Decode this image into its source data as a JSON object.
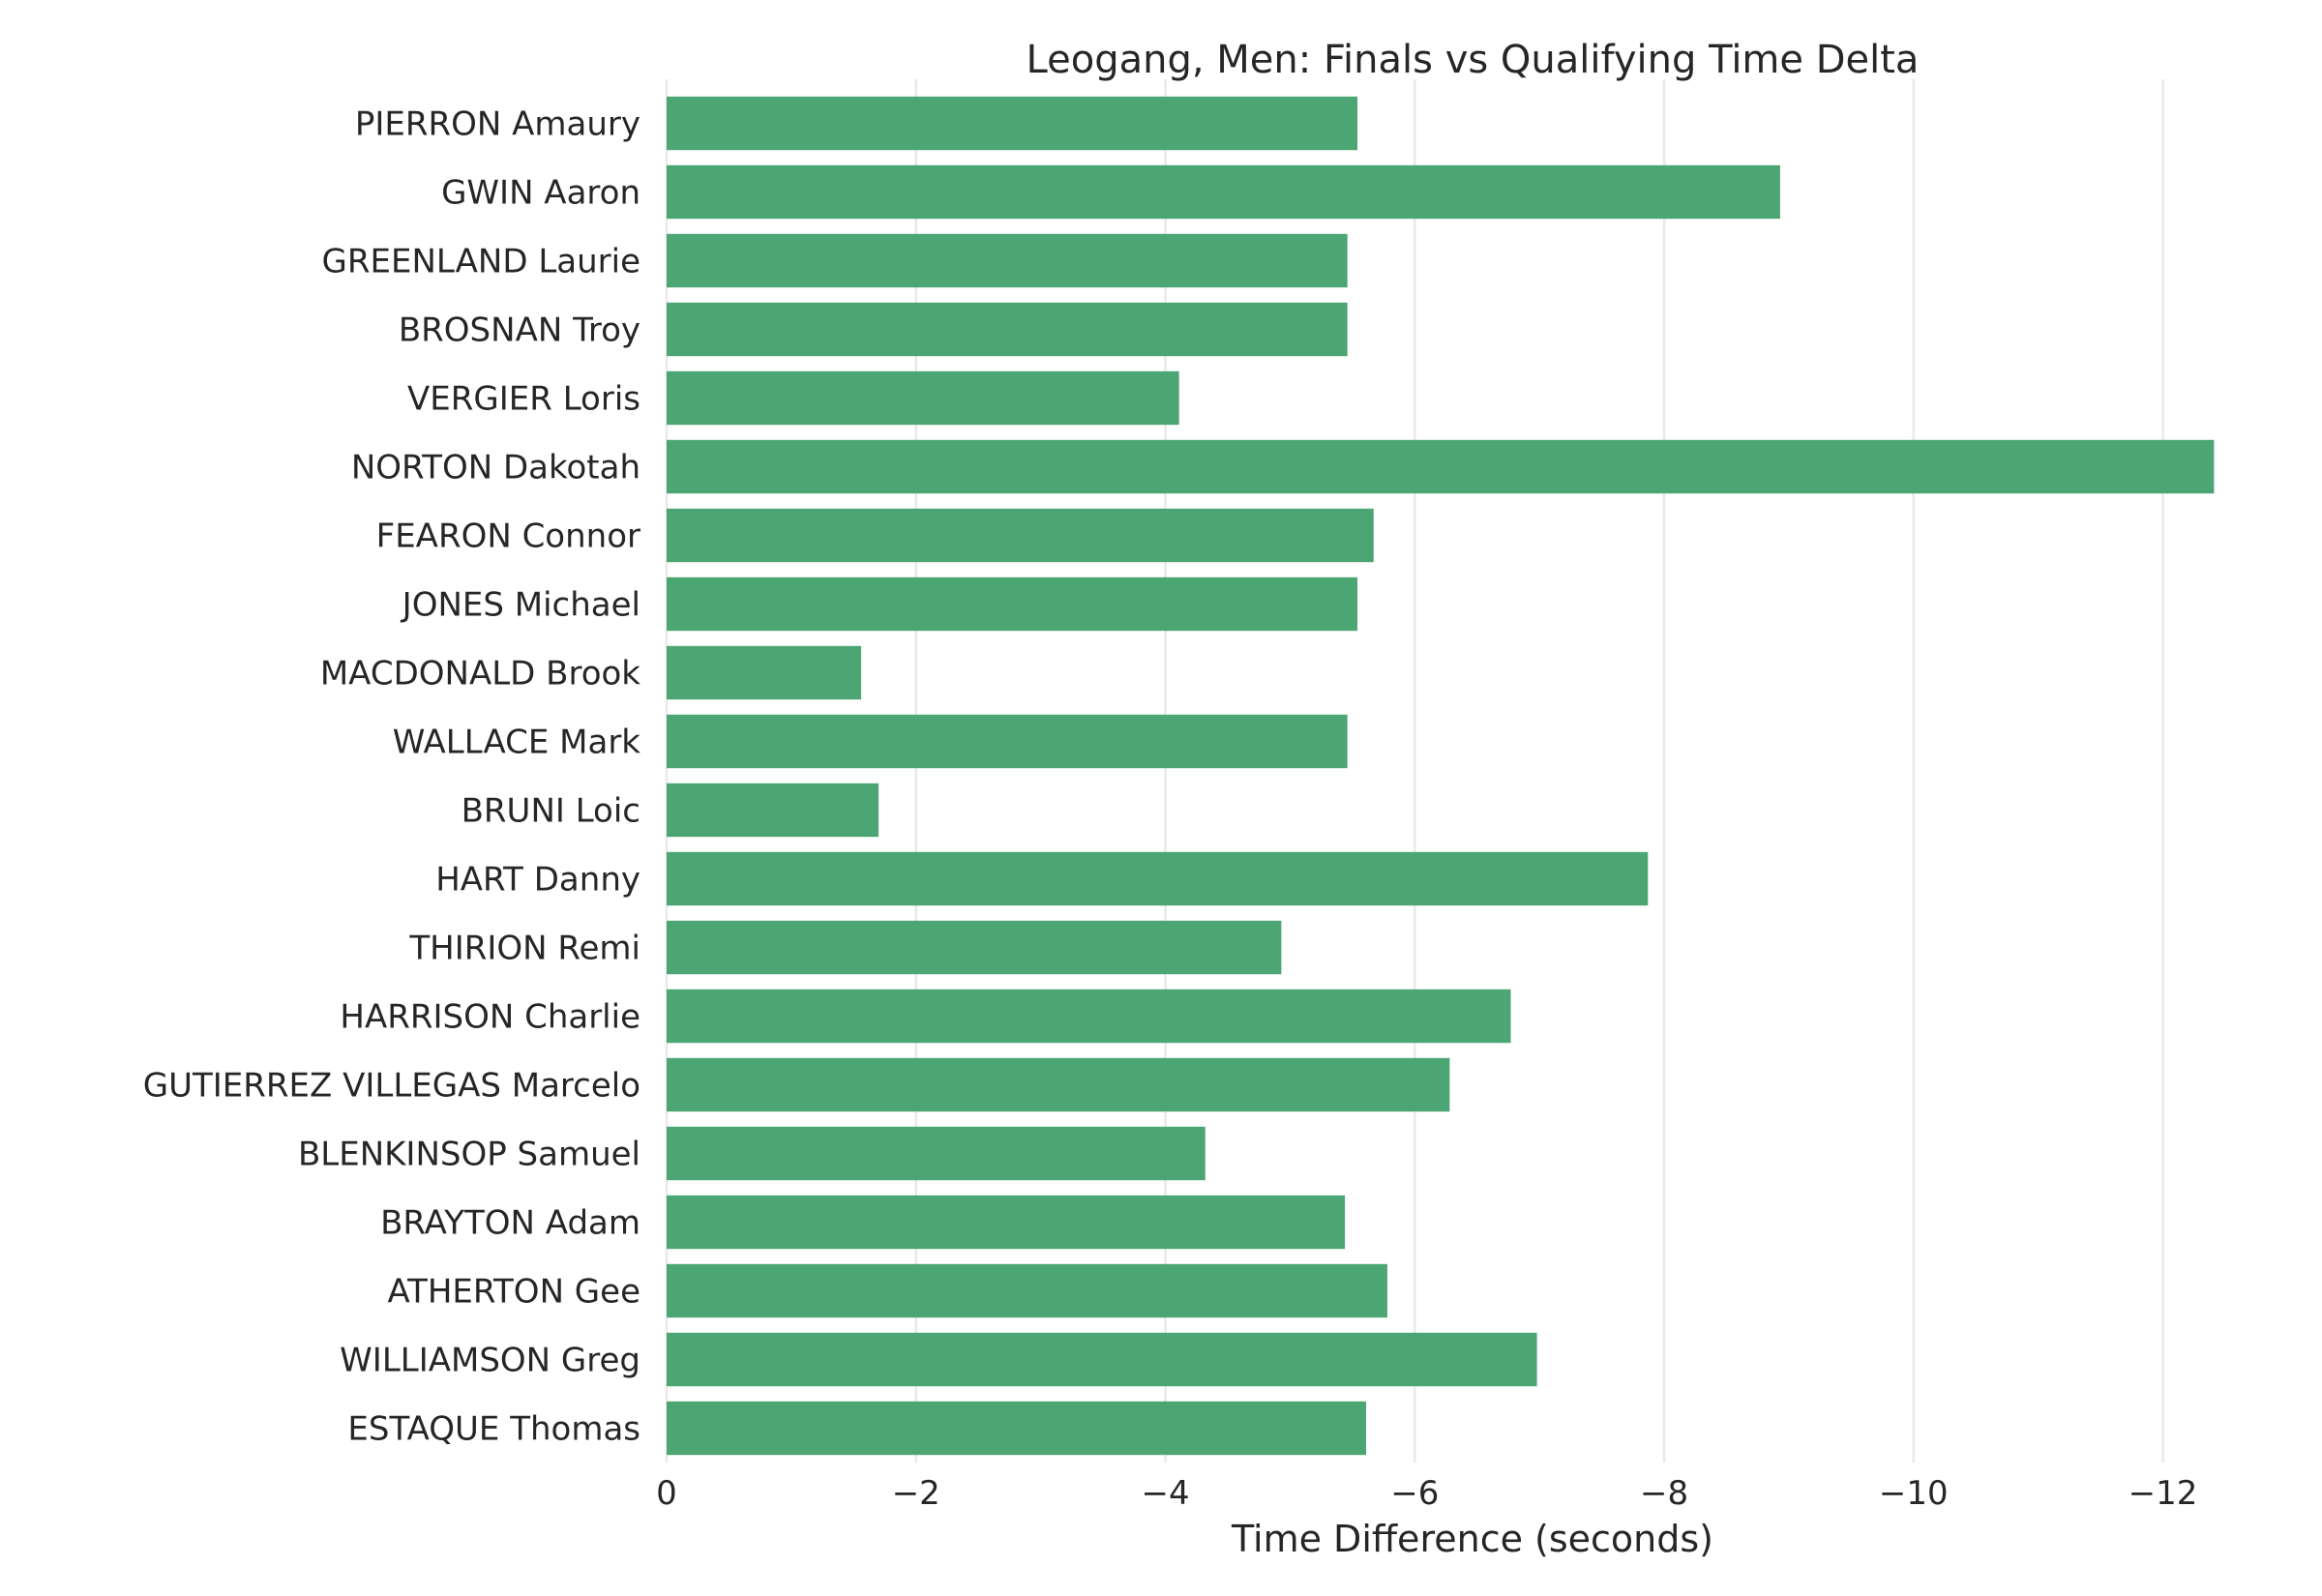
{
  "chart_data": {
    "type": "bar",
    "orientation": "horizontal",
    "title": "Leogang, Men: Finals vs Qualifying Time Delta",
    "xlabel": "Time Difference (seconds)",
    "ylabel": "",
    "x_axis_inverted": true,
    "xlim": [
      0,
      -12.5
    ],
    "xticks": [
      0,
      -2,
      -4,
      -6,
      -8,
      -10,
      -12
    ],
    "xtick_labels": [
      "0",
      "−2",
      "−4",
      "−6",
      "−8",
      "−10",
      "−12"
    ],
    "grid": "vertical",
    "bar_color": "#4ca674",
    "categories": [
      "PIERRON Amaury",
      "GWIN Aaron",
      "GREENLAND Laurie",
      "BROSNAN Troy",
      "VERGIER Loris",
      "NORTON Dakotah",
      "FEARON Connor",
      "JONES Michael",
      "MACDONALD Brook",
      "WALLACE Mark",
      "BRUNI Loic",
      "HART Danny",
      "THIRION Remi",
      "HARRISON Charlie",
      "GUTIERREZ VILLEGAS Marcelo",
      "BLENKINSOP Samuel",
      "BRAYTON Adam",
      "ATHERTON Gee",
      "WILLIAMSON Greg",
      "ESTAQUE Thomas"
    ],
    "values": [
      -5.54,
      -8.93,
      -5.46,
      -5.46,
      -4.11,
      -12.41,
      -5.67,
      -5.54,
      -1.56,
      -5.46,
      -1.7,
      -7.87,
      -4.93,
      -6.77,
      -6.28,
      -4.32,
      -5.44,
      -5.78,
      -6.98,
      -5.61
    ]
  }
}
